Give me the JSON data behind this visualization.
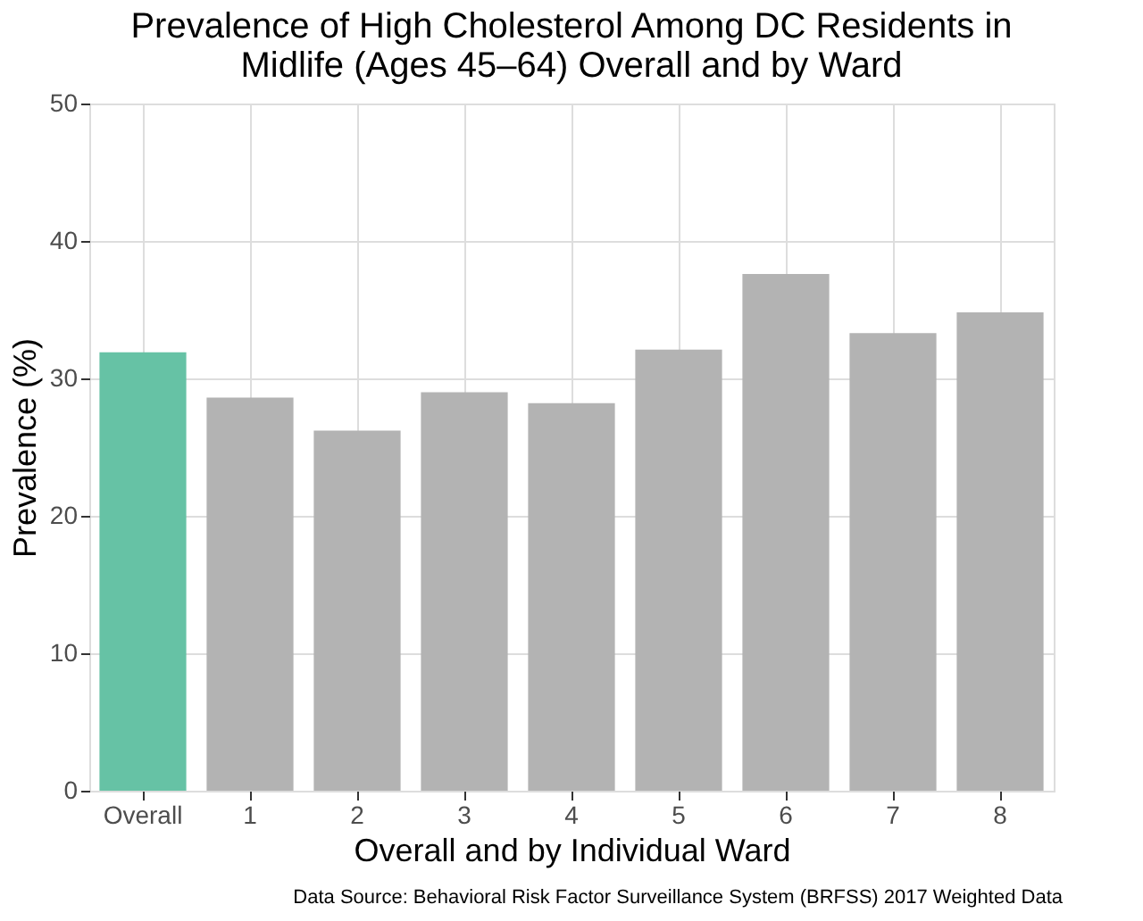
{
  "chart_data": {
    "type": "bar",
    "title": [
      "Prevalence of High Cholesterol Among DC Residents in",
      "Midlife (Ages 45–64) Overall and by Ward"
    ],
    "xlabel": "Overall and by Individual Ward",
    "ylabel": "Prevalence (%)",
    "categories": [
      "Overall",
      "1",
      "2",
      "3",
      "4",
      "5",
      "6",
      "7",
      "8"
    ],
    "values": [
      31.9,
      28.6,
      26.2,
      29.0,
      28.2,
      32.1,
      37.6,
      33.3,
      34.8
    ],
    "colors": [
      "#66c2a5",
      "#b3b3b3",
      "#b3b3b3",
      "#b3b3b3",
      "#b3b3b3",
      "#b3b3b3",
      "#b3b3b3",
      "#b3b3b3",
      "#b3b3b3"
    ],
    "ylim": [
      0,
      50
    ],
    "yticks": [
      0,
      10,
      20,
      30,
      40,
      50
    ],
    "grid": true,
    "annotations": [
      "Data Source: Behavioral Risk Factor Surveillance System (BRFSS) 2017 Weighted Data"
    ]
  }
}
